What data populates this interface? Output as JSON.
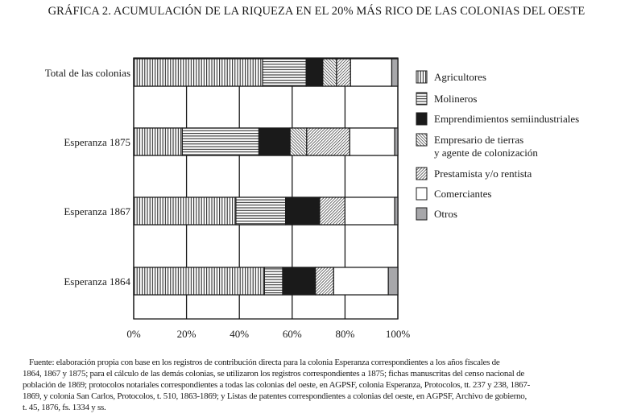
{
  "chart_data": {
    "type": "bar",
    "orientation": "horizontal",
    "stacked": true,
    "title": "GRÁFICA 2. ACUMULACIÓN DE LA RIQUEZA EN EL 20% MÁS RICO DE LAS COLONIAS DEL OESTE",
    "xlabel": "",
    "ylabel": "",
    "xlim": [
      0,
      100
    ],
    "x_ticks": [
      "0%",
      "20%",
      "40%",
      "60%",
      "80%",
      "100%"
    ],
    "grid": true,
    "legend_position": "right",
    "categories": [
      "Total de las colonias",
      "Esperanza 1875",
      "Esperanza 1867",
      "Esperanza 1864"
    ],
    "series": [
      {
        "name": "Agricultores",
        "pattern": "vertical",
        "values": [
          48.8,
          18.4,
          38.7,
          49.5
        ]
      },
      {
        "name": "Molineros",
        "pattern": "horizontal",
        "values": [
          16.5,
          29.0,
          18.8,
          6.9
        ]
      },
      {
        "name": "Emprendimientos semiindustriales",
        "pattern": "solid-black",
        "values": [
          6.3,
          11.8,
          12.9,
          12.4
        ]
      },
      {
        "name": "Empresario de tierras",
        "name_line2": "y agente de colonización",
        "pattern": "backslash",
        "values": [
          5.2,
          6.3,
          0,
          0
        ]
      },
      {
        "name": "Prestamista y/o rentista",
        "pattern": "slash",
        "values": [
          5.3,
          16.3,
          9.6,
          6.9
        ]
      },
      {
        "name": "Comerciantes",
        "pattern": "white",
        "values": [
          15.6,
          17.0,
          18.8,
          20.7
        ]
      },
      {
        "name": "Otros",
        "pattern": "gray",
        "values": [
          2.3,
          1.2,
          1.2,
          3.6
        ]
      }
    ],
    "colors": {
      "ink": "#1a1a1a",
      "gray": "#a7a7aa",
      "white": "#ffffff"
    }
  },
  "source": {
    "lines": [
      "Fuente: elaboración propia con base en los registros de contribución directa para la colonia Esperanza correspondientes a los años fiscales de",
      "1864, 1867 y 1875; para el cálculo de las demás colonias, se utilizaron los registros correspondientes a 1875; fichas manuscritas del censo nacional de",
      "población de 1869; protocolos notariales correspondientes a todas las colonias del oeste, en AGPSF, colonia Esperanza, Protocolos, tt. 237 y 238, 1867-",
      "1869, y colonia San Carlos, Protocolos, t. 510, 1863-1869; y Listas de patentes correspondientes a colonias del oeste, en AGPSF, Archivo de gobierno,",
      "t. 45, 1876, fs. 1334 y ss."
    ]
  }
}
